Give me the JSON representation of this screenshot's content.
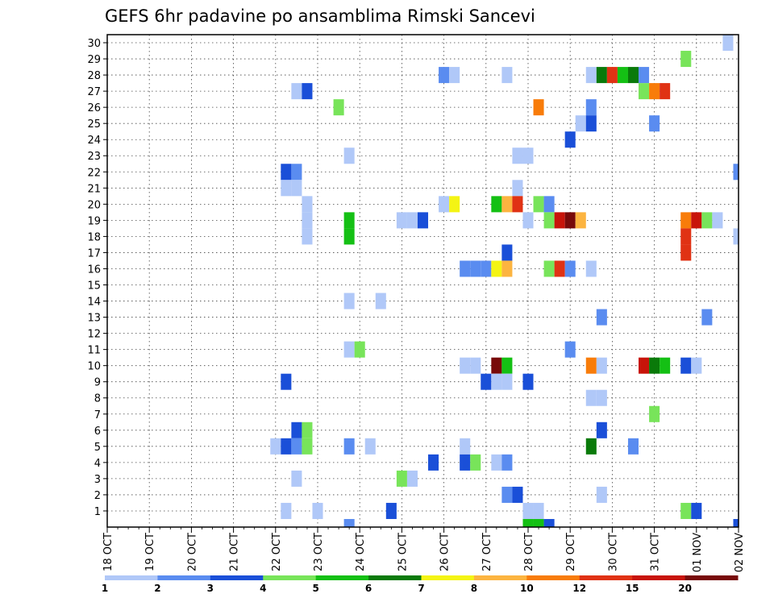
{
  "chart_data": {
    "type": "heatmap",
    "title": "GEFS 6hr padavine po ansamblima Rimski Sancevi",
    "xlabel": "",
    "ylabel": "",
    "x_tick_labels": [
      "18 OCT",
      "19 OCT",
      "20 OCT",
      "21 OCT",
      "22 OCT",
      "23 OCT",
      "24 OCT",
      "25 OCT",
      "26 OCT",
      "27 OCT",
      "28 OCT",
      "29 OCT",
      "30 OCT",
      "31 OCT",
      "01 NOV",
      "02 NOV"
    ],
    "xlim": [
      0,
      60
    ],
    "y_tick_labels": [
      "1",
      "2",
      "3",
      "4",
      "5",
      "6",
      "7",
      "8",
      "9",
      "10",
      "11",
      "12",
      "13",
      "14",
      "15",
      "16",
      "17",
      "18",
      "19",
      "20",
      "21",
      "22",
      "23",
      "24",
      "25",
      "26",
      "27",
      "28",
      "29",
      "30"
    ],
    "ylim": [
      0,
      30
    ],
    "grid": true,
    "colorbar": {
      "labels": [
        "1",
        "2",
        "3",
        "4",
        "5",
        "6",
        "7",
        "8",
        "10",
        "12",
        "15",
        "20"
      ],
      "colors": [
        "#b0c8f8",
        "#5a8cf0",
        "#1a4fd8",
        "#78e45a",
        "#14c014",
        "#0a7a0a",
        "#f4f414",
        "#fcb440",
        "#f87c0a",
        "#e03214",
        "#c8140a",
        "#780a0a"
      ]
    },
    "cells": [
      {
        "t": 59,
        "m": 30,
        "c": 0
      },
      {
        "t": 55,
        "m": 29,
        "c": 3
      },
      {
        "t": 32,
        "m": 28,
        "c": 1
      },
      {
        "t": 33,
        "m": 28,
        "c": 0
      },
      {
        "t": 38,
        "m": 28,
        "c": 0
      },
      {
        "t": 46,
        "m": 28,
        "c": 0
      },
      {
        "t": 47,
        "m": 28,
        "c": 5
      },
      {
        "t": 48,
        "m": 28,
        "c": 9
      },
      {
        "t": 49,
        "m": 28,
        "c": 4
      },
      {
        "t": 50,
        "m": 28,
        "c": 5
      },
      {
        "t": 51,
        "m": 28,
        "c": 1
      },
      {
        "t": 18,
        "m": 27,
        "c": 0
      },
      {
        "t": 19,
        "m": 27,
        "c": 2
      },
      {
        "t": 51,
        "m": 27,
        "c": 3
      },
      {
        "t": 52,
        "m": 27,
        "c": 8
      },
      {
        "t": 53,
        "m": 27,
        "c": 9
      },
      {
        "t": 22,
        "m": 26,
        "c": 3
      },
      {
        "t": 41,
        "m": 26,
        "c": 8
      },
      {
        "t": 46,
        "m": 26,
        "c": 1
      },
      {
        "t": 45,
        "m": 25,
        "c": 0
      },
      {
        "t": 46,
        "m": 25,
        "c": 2
      },
      {
        "t": 52,
        "m": 25,
        "c": 1
      },
      {
        "t": 44,
        "m": 24,
        "c": 2
      },
      {
        "t": 23,
        "m": 23,
        "c": 0
      },
      {
        "t": 39,
        "m": 23,
        "c": 0
      },
      {
        "t": 40,
        "m": 23,
        "c": 0
      },
      {
        "t": 17,
        "m": 22,
        "c": 2
      },
      {
        "t": 18,
        "m": 22,
        "c": 1
      },
      {
        "t": 60,
        "m": 22,
        "c": 1
      },
      {
        "t": 17,
        "m": 21,
        "c": 0
      },
      {
        "t": 18,
        "m": 21,
        "c": 0
      },
      {
        "t": 39,
        "m": 21,
        "c": 0
      },
      {
        "t": 19,
        "m": 20,
        "c": 0
      },
      {
        "t": 32,
        "m": 20,
        "c": 0
      },
      {
        "t": 33,
        "m": 20,
        "c": 6
      },
      {
        "t": 37,
        "m": 20,
        "c": 4
      },
      {
        "t": 38,
        "m": 20,
        "c": 7
      },
      {
        "t": 39,
        "m": 20,
        "c": 9
      },
      {
        "t": 41,
        "m": 20,
        "c": 3
      },
      {
        "t": 42,
        "m": 20,
        "c": 1
      },
      {
        "t": 19,
        "m": 19,
        "c": 0
      },
      {
        "t": 23,
        "m": 19,
        "c": 4
      },
      {
        "t": 28,
        "m": 19,
        "c": 0
      },
      {
        "t": 29,
        "m": 19,
        "c": 0
      },
      {
        "t": 30,
        "m": 19,
        "c": 2
      },
      {
        "t": 40,
        "m": 19,
        "c": 0
      },
      {
        "t": 42,
        "m": 19,
        "c": 3
      },
      {
        "t": 43,
        "m": 19,
        "c": 10
      },
      {
        "t": 44,
        "m": 19,
        "c": 11
      },
      {
        "t": 45,
        "m": 19,
        "c": 7
      },
      {
        "t": 55,
        "m": 19,
        "c": 8
      },
      {
        "t": 56,
        "m": 19,
        "c": 10
      },
      {
        "t": 57,
        "m": 19,
        "c": 3
      },
      {
        "t": 58,
        "m": 19,
        "c": 0
      },
      {
        "t": 19,
        "m": 18,
        "c": 0
      },
      {
        "t": 23,
        "m": 18,
        "c": 4
      },
      {
        "t": 55,
        "m": 18,
        "c": 9
      },
      {
        "t": 60,
        "m": 18,
        "c": 0
      },
      {
        "t": 38,
        "m": 17,
        "c": 2
      },
      {
        "t": 55,
        "m": 17,
        "c": 9
      },
      {
        "t": 34,
        "m": 16,
        "c": 1
      },
      {
        "t": 35,
        "m": 16,
        "c": 1
      },
      {
        "t": 36,
        "m": 16,
        "c": 1
      },
      {
        "t": 37,
        "m": 16,
        "c": 6
      },
      {
        "t": 38,
        "m": 16,
        "c": 7
      },
      {
        "t": 42,
        "m": 16,
        "c": 3
      },
      {
        "t": 43,
        "m": 16,
        "c": 9
      },
      {
        "t": 44,
        "m": 16,
        "c": 1
      },
      {
        "t": 46,
        "m": 16,
        "c": 0
      },
      {
        "t": 23,
        "m": 14,
        "c": 0
      },
      {
        "t": 26,
        "m": 14,
        "c": 0
      },
      {
        "t": 47,
        "m": 13,
        "c": 1
      },
      {
        "t": 57,
        "m": 13,
        "c": 1
      },
      {
        "t": 23,
        "m": 11,
        "c": 0
      },
      {
        "t": 24,
        "m": 11,
        "c": 3
      },
      {
        "t": 44,
        "m": 11,
        "c": 1
      },
      {
        "t": 34,
        "m": 10,
        "c": 0
      },
      {
        "t": 35,
        "m": 10,
        "c": 0
      },
      {
        "t": 37,
        "m": 10,
        "c": 11
      },
      {
        "t": 38,
        "m": 10,
        "c": 4
      },
      {
        "t": 46,
        "m": 10,
        "c": 8
      },
      {
        "t": 47,
        "m": 10,
        "c": 0
      },
      {
        "t": 51,
        "m": 10,
        "c": 10
      },
      {
        "t": 52,
        "m": 10,
        "c": 5
      },
      {
        "t": 53,
        "m": 10,
        "c": 4
      },
      {
        "t": 55,
        "m": 10,
        "c": 2
      },
      {
        "t": 56,
        "m": 10,
        "c": 0
      },
      {
        "t": 17,
        "m": 9,
        "c": 2
      },
      {
        "t": 36,
        "m": 9,
        "c": 2
      },
      {
        "t": 37,
        "m": 9,
        "c": 0
      },
      {
        "t": 38,
        "m": 9,
        "c": 0
      },
      {
        "t": 40,
        "m": 9,
        "c": 2
      },
      {
        "t": 46,
        "m": 8,
        "c": 0
      },
      {
        "t": 47,
        "m": 8,
        "c": 0
      },
      {
        "t": 52,
        "m": 7,
        "c": 3
      },
      {
        "t": 18,
        "m": 6,
        "c": 2
      },
      {
        "t": 19,
        "m": 6,
        "c": 3
      },
      {
        "t": 47,
        "m": 6,
        "c": 2
      },
      {
        "t": 16,
        "m": 5,
        "c": 0
      },
      {
        "t": 17,
        "m": 5,
        "c": 2
      },
      {
        "t": 18,
        "m": 5,
        "c": 1
      },
      {
        "t": 19,
        "m": 5,
        "c": 3
      },
      {
        "t": 23,
        "m": 5,
        "c": 1
      },
      {
        "t": 25,
        "m": 5,
        "c": 0
      },
      {
        "t": 34,
        "m": 5,
        "c": 0
      },
      {
        "t": 46,
        "m": 5,
        "c": 5
      },
      {
        "t": 50,
        "m": 5,
        "c": 1
      },
      {
        "t": 31,
        "m": 4,
        "c": 2
      },
      {
        "t": 34,
        "m": 4,
        "c": 2
      },
      {
        "t": 35,
        "m": 4,
        "c": 3
      },
      {
        "t": 37,
        "m": 4,
        "c": 0
      },
      {
        "t": 38,
        "m": 4,
        "c": 1
      },
      {
        "t": 18,
        "m": 3,
        "c": 0
      },
      {
        "t": 28,
        "m": 3,
        "c": 3
      },
      {
        "t": 29,
        "m": 3,
        "c": 0
      },
      {
        "t": 38,
        "m": 2,
        "c": 1
      },
      {
        "t": 39,
        "m": 2,
        "c": 2
      },
      {
        "t": 47,
        "m": 2,
        "c": 0
      },
      {
        "t": 17,
        "m": 1,
        "c": 0
      },
      {
        "t": 20,
        "m": 1,
        "c": 0
      },
      {
        "t": 27,
        "m": 1,
        "c": 2
      },
      {
        "t": 40,
        "m": 1,
        "c": 0
      },
      {
        "t": 41,
        "m": 1,
        "c": 0
      },
      {
        "t": 55,
        "m": 1,
        "c": 3
      },
      {
        "t": 56,
        "m": 1,
        "c": 2
      },
      {
        "t": 23,
        "m": 0,
        "c": 1
      },
      {
        "t": 40,
        "m": 0,
        "c": 4
      },
      {
        "t": 41,
        "m": 0,
        "c": 4
      },
      {
        "t": 42,
        "m": 0,
        "c": 2
      },
      {
        "t": 60,
        "m": 0,
        "c": 2
      }
    ]
  }
}
